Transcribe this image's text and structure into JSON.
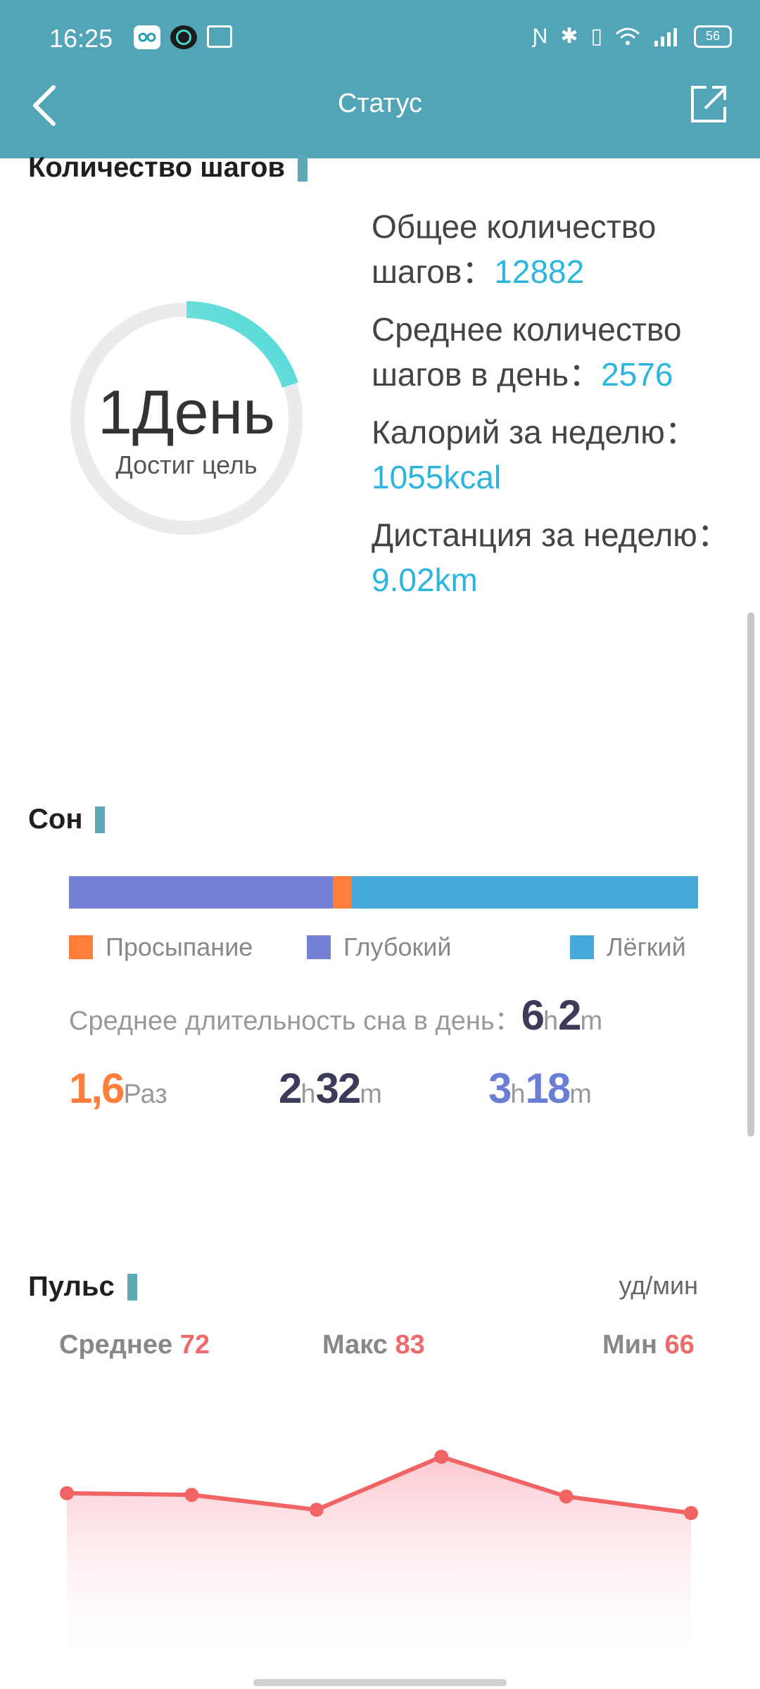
{
  "status_bar": {
    "time": "16:25",
    "battery": "56"
  },
  "header": {
    "title": "Статус",
    "back_icon": "chevron-left-icon",
    "share_icon": "share-icon"
  },
  "steps": {
    "title": "Количество шагов",
    "ring_main": "1День",
    "ring_sub": "Достиг цель",
    "ring_progress_fraction": 0.2,
    "ring_colors": {
      "track": "#ebebeb",
      "progress": "#4fd9d6"
    },
    "total_label": "Общее количество шагов",
    "total_value": "12882",
    "avg_label": "Среднее количество шагов в день",
    "avg_value": "2576",
    "cal_label": "Калорий за неделю",
    "cal_value": "1055kcal",
    "dist_label": "Дистанция за неделю",
    "dist_value": "9.02km",
    "sep": "："
  },
  "sleep": {
    "title": "Сон",
    "bar_segments": [
      {
        "name": "Глубокий",
        "fraction": 0.42,
        "color": "#7581d4"
      },
      {
        "name": "Просыпание",
        "fraction": 0.03,
        "color": "#ff7f3a"
      },
      {
        "name": "Лёгкий",
        "fraction": 0.55,
        "color": "#46a9d9"
      }
    ],
    "legend": {
      "awake": "Просыпание",
      "deep": "Глубокий",
      "light": "Лёгкий"
    },
    "avg_label": "Среднее длительность сна в день：",
    "avg_h": "6",
    "avg_h_unit": "h",
    "avg_m": "2",
    "avg_m_unit": "m",
    "awake_value": "1,6",
    "awake_unit": "Раз",
    "deep_h": "2",
    "deep_h_unit": "h",
    "deep_m": "32",
    "deep_m_unit": "m",
    "light_h": "3",
    "light_h_unit": "h",
    "light_m": "18",
    "light_m_unit": "m"
  },
  "pulse": {
    "title": "Пульс",
    "unit": "уд/мин",
    "avg_label": "Среднее",
    "avg_value": "72",
    "max_label": "Макс",
    "max_value": "83",
    "min_label": "Мин",
    "min_value": "66",
    "chart_values": [
      72,
      71.5,
      67,
      83,
      71,
      66
    ],
    "line_color": "#f26464"
  }
}
